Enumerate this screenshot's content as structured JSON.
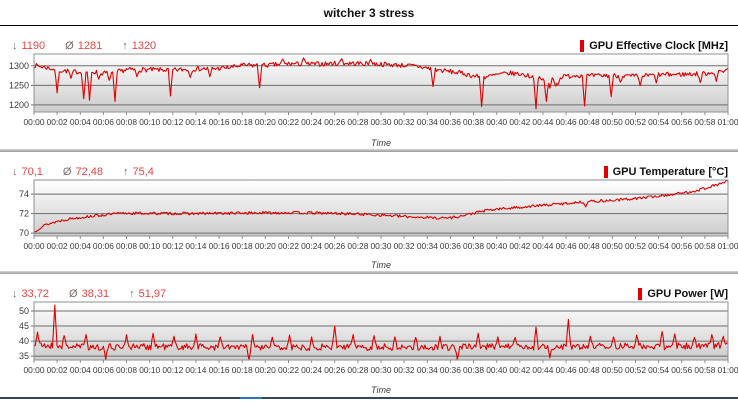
{
  "window": {
    "title": "witcher 3 stress"
  },
  "colors": {
    "line": "#e10000",
    "accent_bar": "#e10000",
    "stat_number": "#ee4444",
    "stat_symbol": "#7a6a6a",
    "grid": "#6e6e6e",
    "plot_border": "#8f8f8f",
    "axis_text": "#3a3a3a",
    "plot_bg_top": "#ffffff",
    "plot_bg_bottom": "#cccccc",
    "window_edge": "#33465a",
    "window_edge_highlight": "#2e75b6"
  },
  "time_axis": {
    "label": "Time",
    "ticks": [
      "00:00",
      "00:02",
      "00:04",
      "00:06",
      "00:08",
      "00:10",
      "00:12",
      "00:14",
      "00:16",
      "00:18",
      "00:20",
      "00:22",
      "00:24",
      "00:26",
      "00:28",
      "00:30",
      "00:32",
      "00:34",
      "00:36",
      "00:38",
      "00:40",
      "00:42",
      "00:44",
      "00:46",
      "00:48",
      "00:50",
      "00:52",
      "00:54",
      "00:56",
      "00:58",
      "01:00"
    ],
    "x_range_minutes": [
      0,
      60
    ]
  },
  "chart_data": [
    {
      "type": "line",
      "title": "GPU Effective Clock [MHz]",
      "xlabel": "Time",
      "stats": {
        "min_symbol": "↓",
        "min": "1190",
        "avg_symbol": "Ø",
        "avg": "1281",
        "max_symbol": "↑",
        "max": "1320"
      },
      "ylim": [
        1182,
        1330
      ],
      "yticks": [
        1200,
        1250,
        1300
      ],
      "noise": 6,
      "seed": 7,
      "baseline": [
        [
          0,
          1301
        ],
        [
          1,
          1296
        ],
        [
          2,
          1289
        ],
        [
          3,
          1286
        ],
        [
          4,
          1284
        ],
        [
          5,
          1285
        ],
        [
          6,
          1281
        ],
        [
          7,
          1283
        ],
        [
          8,
          1290
        ],
        [
          10,
          1290
        ],
        [
          12,
          1289
        ],
        [
          14,
          1292
        ],
        [
          16,
          1293
        ],
        [
          17,
          1296
        ],
        [
          18,
          1301
        ],
        [
          20,
          1301
        ],
        [
          22,
          1305
        ],
        [
          24,
          1304
        ],
        [
          26,
          1306
        ],
        [
          28,
          1306
        ],
        [
          30,
          1304
        ],
        [
          32,
          1301
        ],
        [
          33,
          1299
        ],
        [
          34,
          1294
        ],
        [
          35,
          1289
        ],
        [
          36,
          1285
        ],
        [
          37,
          1281
        ],
        [
          38,
          1274
        ],
        [
          39,
          1271
        ],
        [
          40,
          1277
        ],
        [
          41,
          1281
        ],
        [
          42,
          1279
        ],
        [
          43,
          1273
        ],
        [
          44,
          1264
        ],
        [
          45,
          1269
        ],
        [
          46,
          1273
        ],
        [
          47,
          1276
        ],
        [
          48,
          1274
        ],
        [
          50,
          1275
        ],
        [
          52,
          1273
        ],
        [
          54,
          1277
        ],
        [
          56,
          1278
        ],
        [
          58,
          1280
        ],
        [
          60,
          1290
        ]
      ],
      "dips_spikes": [
        [
          2.0,
          1231
        ],
        [
          3.2,
          1268
        ],
        [
          4.3,
          1216
        ],
        [
          4.8,
          1212
        ],
        [
          5.6,
          1266
        ],
        [
          6.5,
          1263
        ],
        [
          7.0,
          1209
        ],
        [
          8.9,
          1272
        ],
        [
          11.8,
          1223
        ],
        [
          13.5,
          1270
        ],
        [
          15.2,
          1272
        ],
        [
          19.5,
          1244
        ],
        [
          21.5,
          1317
        ],
        [
          23.3,
          1320
        ],
        [
          26.6,
          1318
        ],
        [
          29.1,
          1316
        ],
        [
          34.5,
          1247
        ],
        [
          38.7,
          1196
        ],
        [
          43.4,
          1190
        ],
        [
          44.3,
          1209
        ],
        [
          44.6,
          1243
        ],
        [
          45.1,
          1248
        ],
        [
          45.3,
          1252
        ],
        [
          47.6,
          1197
        ],
        [
          49.9,
          1221
        ],
        [
          50.7,
          1258
        ],
        [
          52.4,
          1249
        ],
        [
          53.8,
          1256
        ],
        [
          57.6,
          1257
        ],
        [
          59.0,
          1260
        ]
      ]
    },
    {
      "type": "line",
      "title": "GPU Temperature [°C]",
      "xlabel": "Time",
      "stats": {
        "min_symbol": "↓",
        "min": "70,1",
        "avg_symbol": "Ø",
        "avg": "72,48",
        "max_symbol": "↑",
        "max": "75,4"
      },
      "ylim": [
        69.7,
        75.45
      ],
      "yticks": [
        70,
        72,
        74
      ],
      "noise": 0.14,
      "seed": 13,
      "baseline": [
        [
          0,
          70.1
        ],
        [
          0.5,
          70.55
        ],
        [
          1,
          70.85
        ],
        [
          2,
          71.2
        ],
        [
          3,
          71.45
        ],
        [
          4,
          71.6
        ],
        [
          5,
          71.75
        ],
        [
          6,
          71.85
        ],
        [
          7,
          71.98
        ],
        [
          8,
          72.05
        ],
        [
          10,
          72.02
        ],
        [
          14,
          72.0
        ],
        [
          18,
          72.06
        ],
        [
          22,
          72.1
        ],
        [
          26,
          72.03
        ],
        [
          28,
          71.95
        ],
        [
          30,
          71.85
        ],
        [
          32,
          71.7
        ],
        [
          34,
          71.6
        ],
        [
          35,
          71.55
        ],
        [
          36,
          71.58
        ],
        [
          37,
          71.75
        ],
        [
          38,
          72.05
        ],
        [
          39,
          72.3
        ],
        [
          40,
          72.45
        ],
        [
          42,
          72.65
        ],
        [
          44,
          72.85
        ],
        [
          46,
          73.05
        ],
        [
          48,
          73.25
        ],
        [
          50,
          73.35
        ],
        [
          52,
          73.55
        ],
        [
          54,
          73.8
        ],
        [
          56,
          74.1
        ],
        [
          57,
          74.3
        ],
        [
          58,
          74.6
        ],
        [
          59,
          74.95
        ],
        [
          60,
          75.3
        ]
      ],
      "dips_spikes": [
        [
          47.7,
          72.7
        ],
        [
          59.9,
          75.4
        ]
      ]
    },
    {
      "type": "line",
      "title": "GPU Power [W]",
      "xlabel": "Time",
      "stats": {
        "min_symbol": "↓",
        "min": "33,72",
        "avg_symbol": "Ø",
        "avg": "38,31",
        "max_symbol": "↑",
        "max": "51,97"
      },
      "ylim": [
        33.7,
        53
      ],
      "yticks": [
        35,
        40,
        45,
        50
      ],
      "noise": 1.1,
      "seed": 21,
      "baseline": [
        [
          0,
          38.6
        ],
        [
          5,
          38.0
        ],
        [
          10,
          38.2
        ],
        [
          15,
          38.0
        ],
        [
          20,
          37.8
        ],
        [
          25,
          38.0
        ],
        [
          30,
          38.0
        ],
        [
          35,
          37.9
        ],
        [
          40,
          38.2
        ],
        [
          45,
          38.0
        ],
        [
          50,
          38.3
        ],
        [
          55,
          38.2
        ],
        [
          60,
          38.6
        ]
      ],
      "dips_spikes": [
        [
          0.3,
          43
        ],
        [
          1.8,
          51.97
        ],
        [
          2.6,
          41.8
        ],
        [
          4.5,
          42.2
        ],
        [
          6.2,
          33.9
        ],
        [
          8.0,
          42.1
        ],
        [
          10.3,
          42.6
        ],
        [
          12.1,
          41.6
        ],
        [
          14.0,
          42.4
        ],
        [
          16.1,
          41.4
        ],
        [
          18.6,
          33.72
        ],
        [
          18.9,
          42.2
        ],
        [
          20.6,
          41.3
        ],
        [
          22.1,
          42.0
        ],
        [
          24.0,
          41.4
        ],
        [
          26.0,
          45.0
        ],
        [
          27.6,
          42.2
        ],
        [
          29.4,
          41.8
        ],
        [
          31.2,
          41.4
        ],
        [
          33.0,
          41.2
        ],
        [
          35.1,
          41.6
        ],
        [
          36.6,
          33.9
        ],
        [
          38.4,
          42.6
        ],
        [
          40.1,
          41.4
        ],
        [
          41.6,
          41.2
        ],
        [
          43.4,
          44.6
        ],
        [
          44.6,
          34.4
        ],
        [
          46.2,
          47.2
        ],
        [
          48.1,
          41.6
        ],
        [
          50.1,
          41.4
        ],
        [
          52.1,
          42.0
        ],
        [
          54.3,
          43.2
        ],
        [
          55.4,
          42.4
        ],
        [
          57.1,
          41.2
        ],
        [
          58.6,
          42.2
        ],
        [
          59.6,
          41.6
        ]
      ]
    }
  ]
}
